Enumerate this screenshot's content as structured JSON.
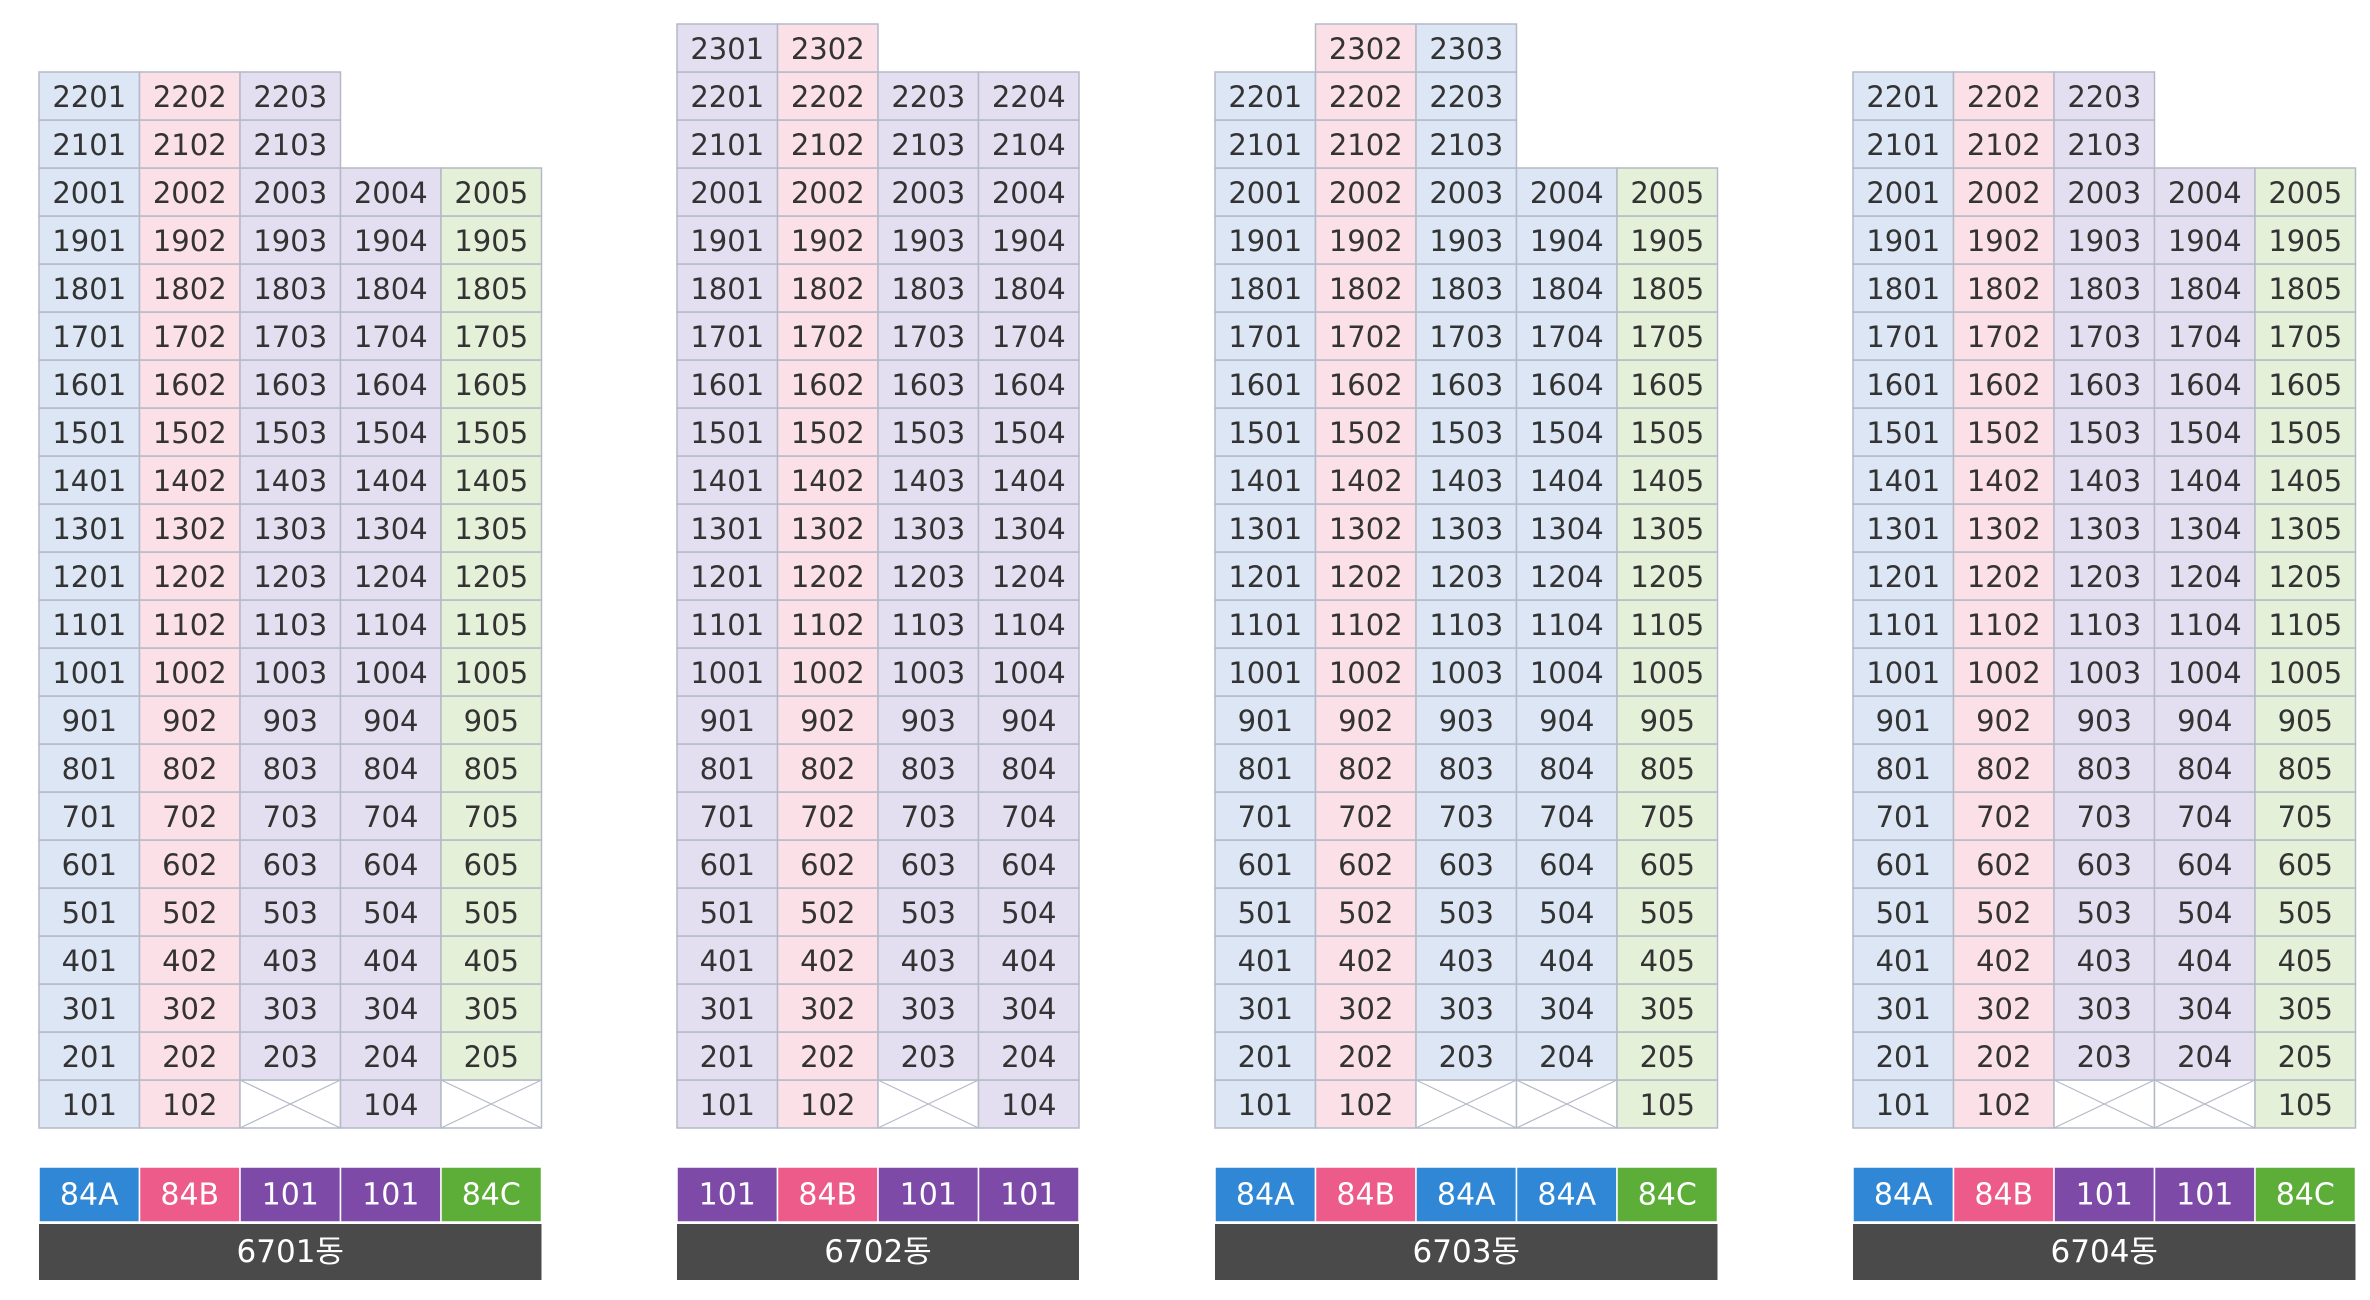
{
  "buildings": [
    {
      "name": "6701동",
      "columns": [
        {
          "type": "84A",
          "color": "#dce6f5",
          "badge_color": "#2f87d6",
          "units": [
            "101",
            "201",
            "301",
            "401",
            "501",
            "601",
            "701",
            "801",
            "901",
            "1001",
            "1101",
            "1201",
            "1301",
            "1401",
            "1501",
            "1601",
            "1701",
            "1801",
            "1901",
            "2001",
            "2101",
            "2201"
          ]
        },
        {
          "type": "84B",
          "color": "#fbe1e7",
          "badge_color": "#ec5b8a",
          "units": [
            "102",
            "202",
            "302",
            "402",
            "502",
            "602",
            "702",
            "802",
            "902",
            "1002",
            "1102",
            "1202",
            "1302",
            "1402",
            "1502",
            "1602",
            "1702",
            "1802",
            "1902",
            "2002",
            "2102",
            "2202"
          ]
        },
        {
          "type": "101",
          "color": "#e4dff0",
          "badge_color": "#7e4aa8",
          "units": [
            null,
            "203",
            "303",
            "403",
            "503",
            "603",
            "703",
            "803",
            "903",
            "1003",
            "1103",
            "1203",
            "1303",
            "1403",
            "1503",
            "1603",
            "1703",
            "1803",
            "1903",
            "2003",
            "2103",
            "2203"
          ]
        },
        {
          "type": "101",
          "color": "#e4dff0",
          "badge_color": "#7e4aa8",
          "units": [
            "104",
            "204",
            "304",
            "404",
            "504",
            "604",
            "704",
            "804",
            "904",
            "1004",
            "1104",
            "1204",
            "1304",
            "1404",
            "1504",
            "1604",
            "1704",
            "1804",
            "1904",
            "2004"
          ]
        },
        {
          "type": "84C",
          "color": "#e5f0d9",
          "badge_color": "#5cae39",
          "units": [
            null,
            "205",
            "305",
            "405",
            "505",
            "605",
            "705",
            "805",
            "905",
            "1005",
            "1105",
            "1205",
            "1305",
            "1405",
            "1505",
            "1605",
            "1705",
            "1805",
            "1905",
            "2005"
          ]
        }
      ]
    },
    {
      "name": "6702동",
      "columns": [
        {
          "type": "101",
          "color": "#e4dff0",
          "badge_color": "#7e4aa8",
          "units": [
            "101",
            "201",
            "301",
            "401",
            "501",
            "601",
            "701",
            "801",
            "901",
            "1001",
            "1101",
            "1201",
            "1301",
            "1401",
            "1501",
            "1601",
            "1701",
            "1801",
            "1901",
            "2001",
            "2101",
            "2201",
            "2301"
          ]
        },
        {
          "type": "84B",
          "color": "#fbe1e7",
          "badge_color": "#ec5b8a",
          "units": [
            "102",
            "202",
            "302",
            "402",
            "502",
            "602",
            "702",
            "802",
            "902",
            "1002",
            "1102",
            "1202",
            "1302",
            "1402",
            "1502",
            "1602",
            "1702",
            "1802",
            "1902",
            "2002",
            "2102",
            "2202",
            "2302"
          ]
        },
        {
          "type": "101",
          "color": "#e4dff0",
          "badge_color": "#7e4aa8",
          "units": [
            null,
            "203",
            "303",
            "403",
            "503",
            "603",
            "703",
            "803",
            "903",
            "1003",
            "1103",
            "1203",
            "1303",
            "1403",
            "1503",
            "1603",
            "1703",
            "1803",
            "1903",
            "2003",
            "2103",
            "2203"
          ]
        },
        {
          "type": "101",
          "color": "#e4dff0",
          "badge_color": "#7e4aa8",
          "units": [
            "104",
            "204",
            "304",
            "404",
            "504",
            "604",
            "704",
            "804",
            "904",
            "1004",
            "1104",
            "1204",
            "1304",
            "1404",
            "1504",
            "1604",
            "1704",
            "1804",
            "1904",
            "2004",
            "2104",
            "2204"
          ]
        }
      ]
    },
    {
      "name": "6703동",
      "columns": [
        {
          "type": "84A",
          "color": "#dce6f5",
          "badge_color": "#2f87d6",
          "units": [
            "101",
            "201",
            "301",
            "401",
            "501",
            "601",
            "701",
            "801",
            "901",
            "1001",
            "1101",
            "1201",
            "1301",
            "1401",
            "1501",
            "1601",
            "1701",
            "1801",
            "1901",
            "2001",
            "2101",
            "2201"
          ]
        },
        {
          "type": "84B",
          "color": "#fbe1e7",
          "badge_color": "#ec5b8a",
          "units": [
            "102",
            "202",
            "302",
            "402",
            "502",
            "602",
            "702",
            "802",
            "902",
            "1002",
            "1102",
            "1202",
            "1302",
            "1402",
            "1502",
            "1602",
            "1702",
            "1802",
            "1902",
            "2002",
            "2102",
            "2202",
            "2302"
          ]
        },
        {
          "type": "84A",
          "color": "#dce6f5",
          "badge_color": "#2f87d6",
          "units": [
            null,
            "203",
            "303",
            "403",
            "503",
            "603",
            "703",
            "803",
            "903",
            "1003",
            "1103",
            "1203",
            "1303",
            "1403",
            "1503",
            "1603",
            "1703",
            "1803",
            "1903",
            "2003",
            "2103",
            "2203",
            "2303"
          ]
        },
        {
          "type": "84A",
          "color": "#dce6f5",
          "badge_color": "#2f87d6",
          "units": [
            null,
            "204",
            "304",
            "404",
            "504",
            "604",
            "704",
            "804",
            "904",
            "1004",
            "1104",
            "1204",
            "1304",
            "1404",
            "1504",
            "1604",
            "1704",
            "1804",
            "1904",
            "2004"
          ]
        },
        {
          "type": "84C",
          "color": "#e5f0d9",
          "badge_color": "#5cae39",
          "units": [
            "105",
            "205",
            "305",
            "405",
            "505",
            "605",
            "705",
            "805",
            "905",
            "1005",
            "1105",
            "1205",
            "1305",
            "1405",
            "1505",
            "1605",
            "1705",
            "1805",
            "1905",
            "2005"
          ]
        }
      ]
    },
    {
      "name": "6704동",
      "columns": [
        {
          "type": "84A",
          "color": "#dce6f5",
          "badge_color": "#2f87d6",
          "units": [
            "101",
            "201",
            "301",
            "401",
            "501",
            "601",
            "701",
            "801",
            "901",
            "1001",
            "1101",
            "1201",
            "1301",
            "1401",
            "1501",
            "1601",
            "1701",
            "1801",
            "1901",
            "2001",
            "2101",
            "2201"
          ]
        },
        {
          "type": "84B",
          "color": "#fbe1e7",
          "badge_color": "#ec5b8a",
          "units": [
            "102",
            "202",
            "302",
            "402",
            "502",
            "602",
            "702",
            "802",
            "902",
            "1002",
            "1102",
            "1202",
            "1302",
            "1402",
            "1502",
            "1602",
            "1702",
            "1802",
            "1902",
            "2002",
            "2102",
            "2202"
          ]
        },
        {
          "type": "101",
          "color": "#e4dff0",
          "badge_color": "#7e4aa8",
          "units": [
            null,
            "203",
            "303",
            "403",
            "503",
            "603",
            "703",
            "803",
            "903",
            "1003",
            "1103",
            "1203",
            "1303",
            "1403",
            "1503",
            "1603",
            "1703",
            "1803",
            "1903",
            "2003",
            "2103",
            "2203"
          ]
        },
        {
          "type": "101",
          "color": "#e4dff0",
          "badge_color": "#7e4aa8",
          "units": [
            null,
            "204",
            "304",
            "404",
            "504",
            "604",
            "704",
            "804",
            "904",
            "1004",
            "1104",
            "1204",
            "1304",
            "1404",
            "1504",
            "1604",
            "1704",
            "1804",
            "1904",
            "2004"
          ]
        },
        {
          "type": "84C",
          "color": "#e5f0d9",
          "badge_color": "#5cae39",
          "units": [
            "105",
            "205",
            "305",
            "405",
            "505",
            "605",
            "705",
            "805",
            "905",
            "1005",
            "1105",
            "1205",
            "1305",
            "1405",
            "1505",
            "1605",
            "1705",
            "1805",
            "1905",
            "2005"
          ]
        }
      ]
    }
  ]
}
